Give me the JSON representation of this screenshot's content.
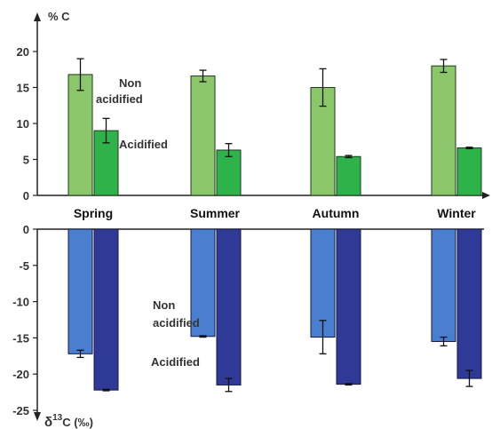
{
  "chart_data": [
    {
      "type": "bar",
      "panel": "top",
      "ylabel": "% C",
      "ylim": [
        0,
        25
      ],
      "yticks": [
        0,
        5,
        10,
        15,
        20
      ],
      "categories": [
        "Spring",
        "Summer",
        "Autumn",
        "Winter"
      ],
      "series": [
        {
          "name": "Non acidified",
          "color": "#8cc66a",
          "values": [
            16.8,
            16.6,
            15.0,
            18.0
          ],
          "errors": [
            2.2,
            0.8,
            2.6,
            0.9
          ]
        },
        {
          "name": "Acidified",
          "color": "#2db34a",
          "values": [
            9.0,
            6.3,
            5.4,
            6.6
          ],
          "errors": [
            1.7,
            0.9,
            0.15,
            0.1
          ]
        }
      ],
      "annotations": [
        {
          "text": "Non",
          "series": "Non acidified",
          "category": "Spring"
        },
        {
          "text": "acidified",
          "series": "Non acidified",
          "category": "Spring"
        },
        {
          "text": "Acidified",
          "series": "Acidified",
          "category": "Spring"
        }
      ]
    },
    {
      "type": "bar",
      "panel": "bottom",
      "ylabel_prefix": "δ",
      "ylabel_sup": "13",
      "ylabel_rest": "C (‰)",
      "ylim": [
        -25,
        0
      ],
      "yticks": [
        0,
        -5,
        -10,
        -15,
        -20,
        -25
      ],
      "categories": [
        "Spring",
        "Summer",
        "Autumn",
        "Winter"
      ],
      "series": [
        {
          "name": "Non acidified",
          "color": "#4a7fcf",
          "values": [
            -17.2,
            -14.8,
            -14.9,
            -15.5
          ],
          "errors": [
            0.5,
            0.1,
            2.3,
            0.6
          ]
        },
        {
          "name": "Acidified",
          "color": "#2e3a96",
          "values": [
            -22.2,
            -21.5,
            -21.4,
            -20.6
          ],
          "errors": [
            0.1,
            0.9,
            0.1,
            1.1
          ]
        }
      ],
      "annotations": [
        {
          "text": "Non",
          "series": "Non acidified",
          "category": "Summer"
        },
        {
          "text": "acidified",
          "series": "Non acidified",
          "category": "Summer"
        },
        {
          "text": "Acidified",
          "series": "Acidified",
          "category": "Summer"
        }
      ]
    }
  ]
}
